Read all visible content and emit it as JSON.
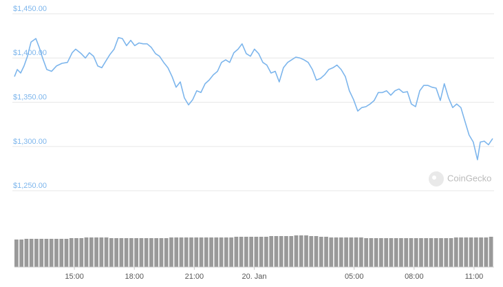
{
  "chart_data": {
    "type": "line",
    "watermark": "CoinGecko",
    "x": [
      12.0,
      12.14,
      12.31,
      12.48,
      12.65,
      12.83,
      13.07,
      13.24,
      13.41,
      13.62,
      13.86,
      14.1,
      14.38,
      14.65,
      14.89,
      15.06,
      15.34,
      15.55,
      15.75,
      15.96,
      16.17,
      16.37,
      16.61,
      16.78,
      16.99,
      17.2,
      17.4,
      17.61,
      17.82,
      18.02,
      18.23,
      18.44,
      18.64,
      18.85,
      19.06,
      19.26,
      19.47,
      19.68,
      19.89,
      20.09,
      20.3,
      20.5,
      20.71,
      20.92,
      21.12,
      21.33,
      21.54,
      21.74,
      21.95,
      22.16,
      22.36,
      22.57,
      22.77,
      22.98,
      23.19,
      23.39,
      23.6,
      23.81,
      24.01,
      24.22,
      24.43,
      24.63,
      24.84,
      25.05,
      25.25,
      25.46,
      25.67,
      25.87,
      26.08,
      26.29,
      26.49,
      26.7,
      26.91,
      27.11,
      27.32,
      27.52,
      27.73,
      27.94,
      28.14,
      28.35,
      28.56,
      28.76,
      28.97,
      29.18,
      29.38,
      29.59,
      29.8,
      30.0,
      30.21,
      30.42,
      30.62,
      30.83,
      31.04,
      31.24,
      31.45,
      31.66,
      31.86,
      32.07,
      32.28,
      32.48,
      32.69,
      32.89,
      33.1,
      33.31,
      33.51,
      33.72,
      33.93,
      34.13,
      34.34,
      34.55,
      34.75,
      34.96,
      35.17,
      35.31,
      35.51,
      35.72,
      35.93
    ],
    "series": [
      {
        "color": "#7cb5ec",
        "values": [
          1379,
          1387,
          1383,
          1391,
          1402,
          1418,
          1422,
          1412,
          1400,
          1387,
          1385,
          1391,
          1394,
          1395,
          1406,
          1410,
          1405,
          1400,
          1406,
          1402,
          1391,
          1389,
          1398,
          1404,
          1410,
          1423,
          1422,
          1414,
          1420,
          1414,
          1417,
          1416,
          1416,
          1412,
          1405,
          1402,
          1395,
          1389,
          1379,
          1367,
          1373,
          1355,
          1347,
          1353,
          1363,
          1361,
          1371,
          1375,
          1381,
          1385,
          1395,
          1398,
          1395,
          1406,
          1410,
          1416,
          1405,
          1402,
          1410,
          1405,
          1395,
          1392,
          1383,
          1385,
          1373,
          1389,
          1395,
          1398,
          1401,
          1400,
          1398,
          1395,
          1387,
          1375,
          1377,
          1381,
          1387,
          1389,
          1392,
          1387,
          1379,
          1363,
          1353,
          1340,
          1344,
          1345,
          1348,
          1352,
          1361,
          1361,
          1363,
          1358,
          1363,
          1365,
          1361,
          1362,
          1348,
          1345,
          1363,
          1369,
          1369,
          1367,
          1366,
          1352,
          1371,
          1355,
          1344,
          1348,
          1344,
          1328,
          1313,
          1305,
          1285,
          1305,
          1306,
          1302,
          1309
        ]
      }
    ],
    "volume": {
      "color": "#999999",
      "values": [
        40,
        40,
        41,
        41,
        41,
        41,
        41,
        41,
        41,
        41,
        41,
        42,
        42,
        42,
        43,
        43,
        43,
        43,
        43,
        42,
        42,
        42,
        42,
        42,
        42,
        42,
        42,
        42,
        42,
        42,
        42,
        43,
        43,
        43,
        43,
        43,
        43,
        43,
        43,
        43,
        43,
        43,
        43,
        43,
        44,
        44,
        44,
        44,
        44,
        44,
        44,
        45,
        45,
        45,
        45,
        45,
        46,
        46,
        46,
        45,
        45,
        44,
        44,
        43,
        43,
        43,
        43,
        43,
        43,
        43,
        42,
        42,
        42,
        42,
        42,
        42,
        42,
        42,
        42,
        42,
        42,
        42,
        42,
        42,
        42,
        42,
        42,
        42,
        43,
        43,
        43,
        43,
        43,
        43,
        43,
        44
      ],
      "ylim": [
        0,
        50
      ]
    },
    "xlim": [
      12,
      36
    ],
    "xticks": [
      {
        "value": 15,
        "label": "15:00"
      },
      {
        "value": 18,
        "label": "18:00"
      },
      {
        "value": 21,
        "label": "21:00"
      },
      {
        "value": 24,
        "label": "20. Jan"
      },
      {
        "value": 29,
        "label": "05:00"
      },
      {
        "value": 32,
        "label": "08:00"
      },
      {
        "value": 35,
        "label": "11:00"
      }
    ],
    "ylim": [
      1240,
      1450
    ],
    "yticks": [
      {
        "value": 1250,
        "label": "$1,250.00"
      },
      {
        "value": 1300,
        "label": "$1,300.00"
      },
      {
        "value": 1350,
        "label": "$1,350.00"
      },
      {
        "value": 1400,
        "label": "$1,400.00"
      },
      {
        "value": 1450,
        "label": "$1,450.00"
      }
    ],
    "grid": true
  }
}
